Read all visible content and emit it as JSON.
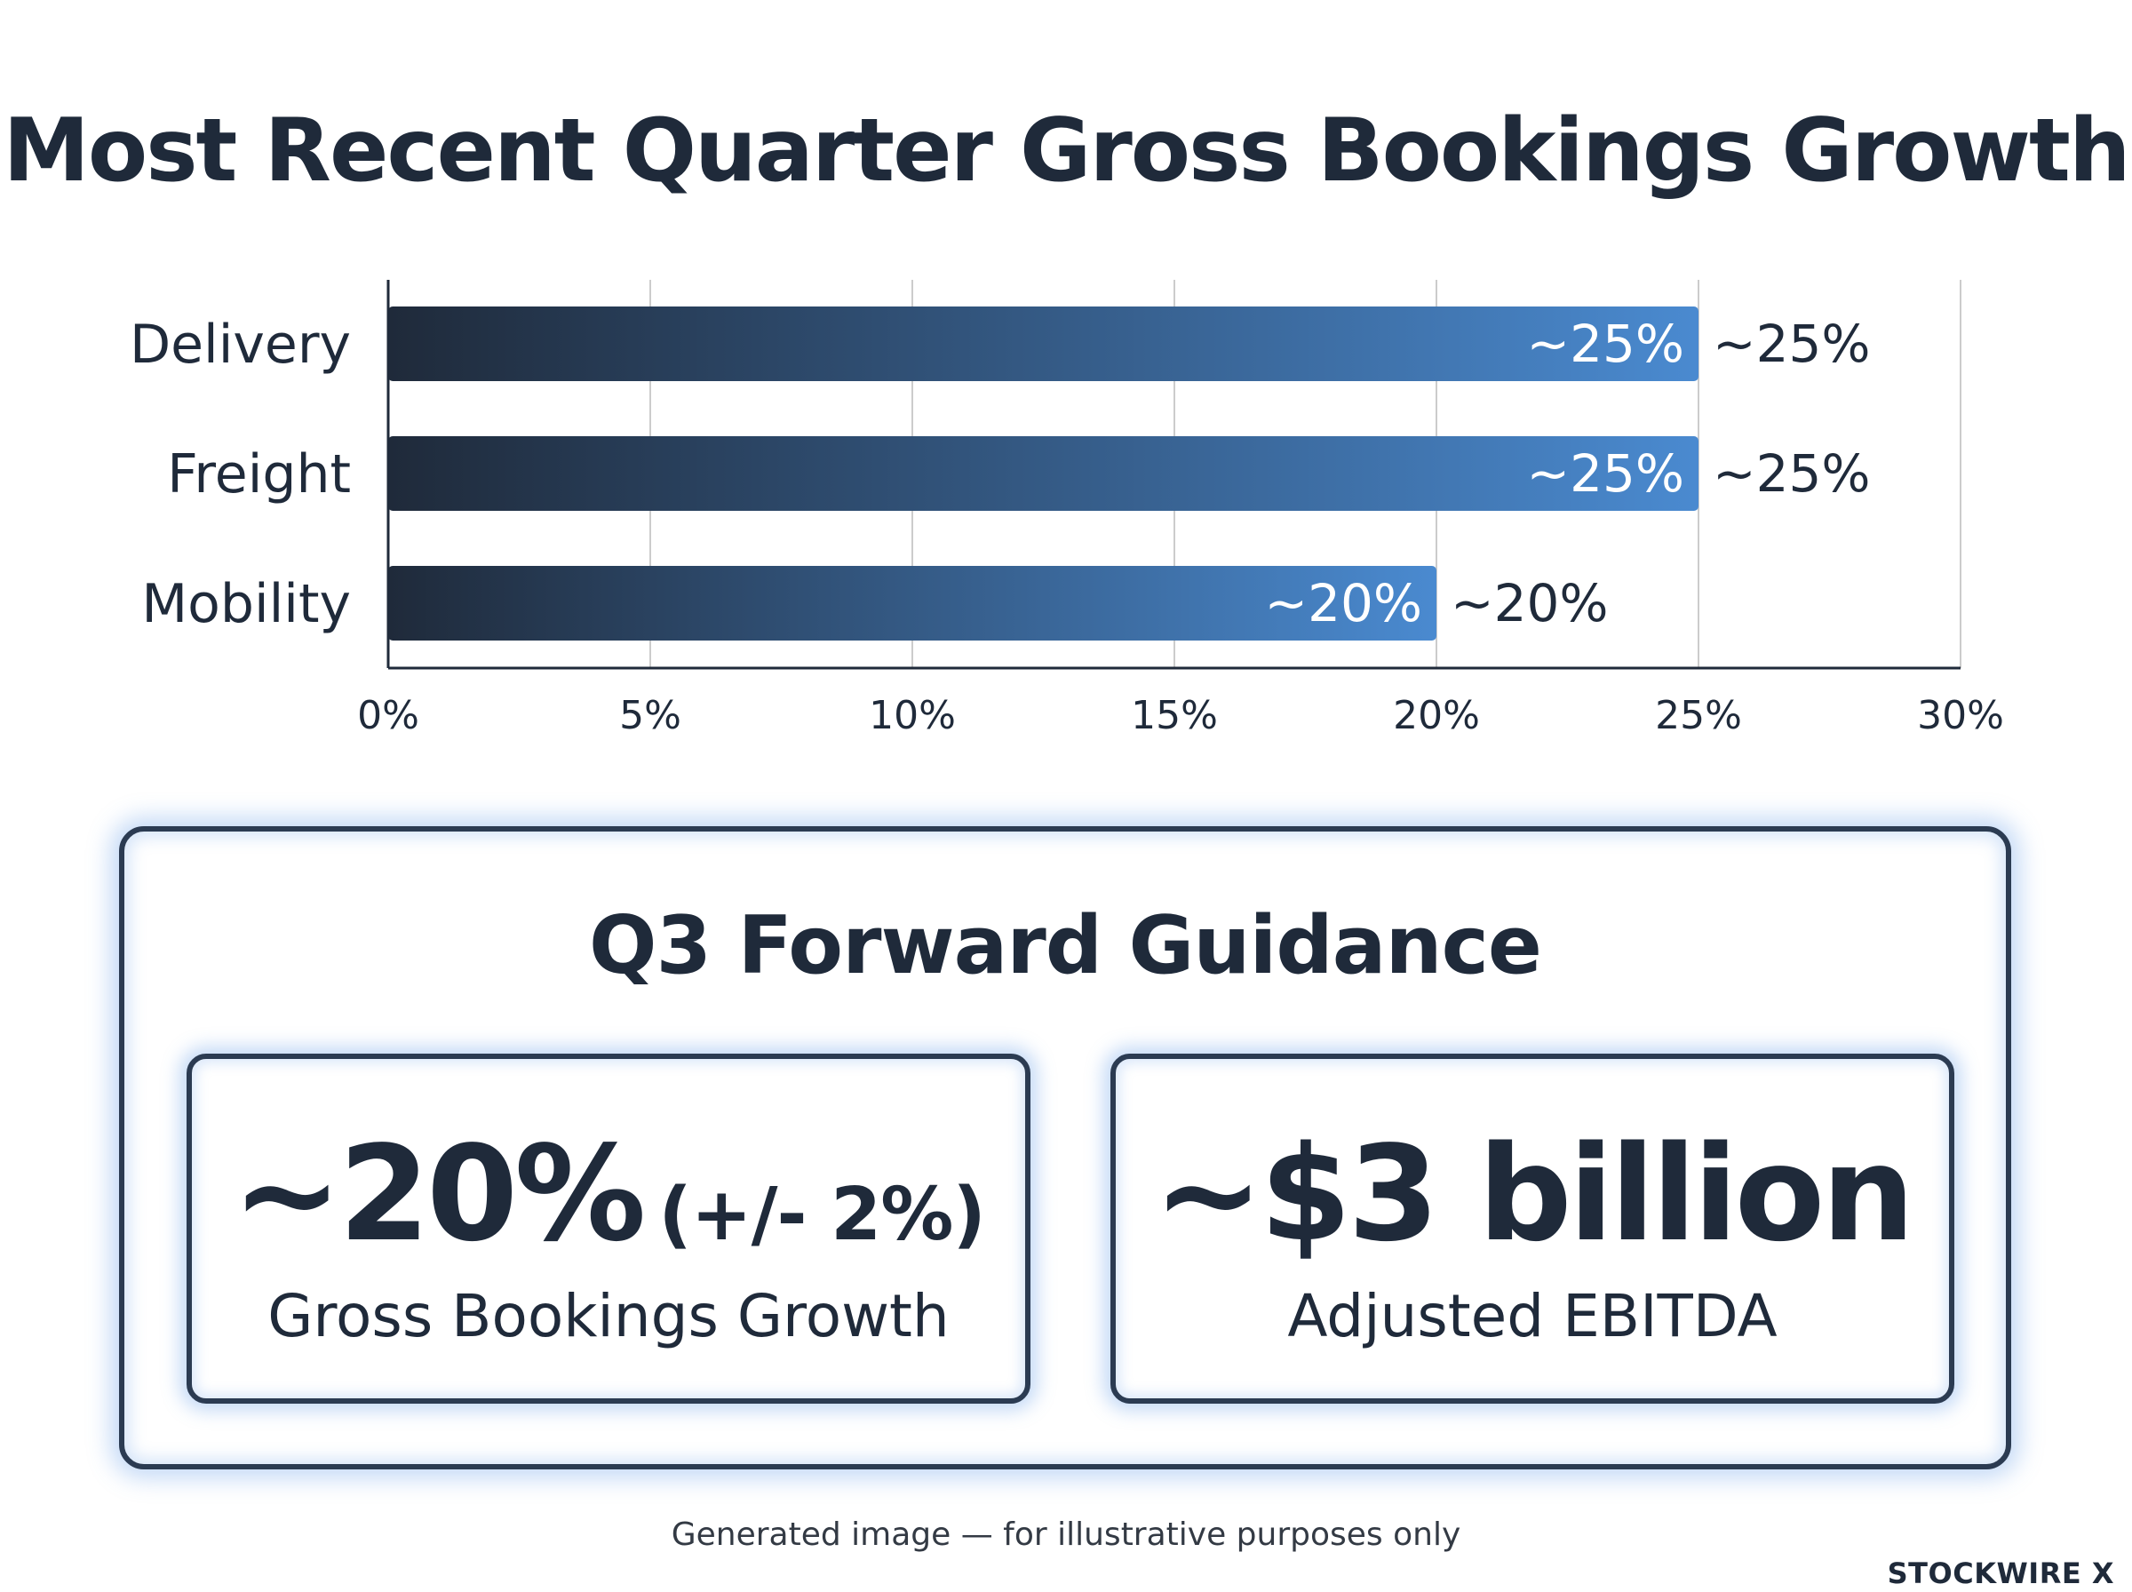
{
  "chart_data": {
    "type": "bar",
    "orientation": "horizontal",
    "title": "Most Recent Quarter Gross Bookings Growth",
    "categories": [
      "Delivery",
      "Freight",
      "Mobility"
    ],
    "values": [
      25,
      25,
      20
    ],
    "data_labels": [
      "~25%",
      "~25%",
      "~20%"
    ],
    "xlim": [
      0,
      30
    ],
    "x_ticks": [
      "0%",
      "5%",
      "10%",
      "15%",
      "20%",
      "25%",
      "30%"
    ],
    "x_tick_values": [
      0,
      5,
      10,
      15,
      20,
      25,
      30
    ],
    "grid": true,
    "xlabel": "",
    "ylabel": "",
    "colors": {
      "bar_start": "#1f2a3a",
      "bar_end": "#4a8ad0",
      "axis": "#1f2a3a",
      "grid": "#cccccc"
    }
  },
  "guidance": {
    "title": "Q3 Forward Guidance",
    "cards": [
      {
        "value": "~20%",
        "qualifier": "(+/- 2%)",
        "label": "Gross Bookings Growth"
      },
      {
        "value": "~$3 billion",
        "qualifier": "",
        "label": "Adjusted EBITDA"
      }
    ],
    "accent_glow": "#5a96e6"
  },
  "footer": {
    "note": "Generated image — for illustrative purposes only",
    "brand": "STOCKWIRE X"
  }
}
